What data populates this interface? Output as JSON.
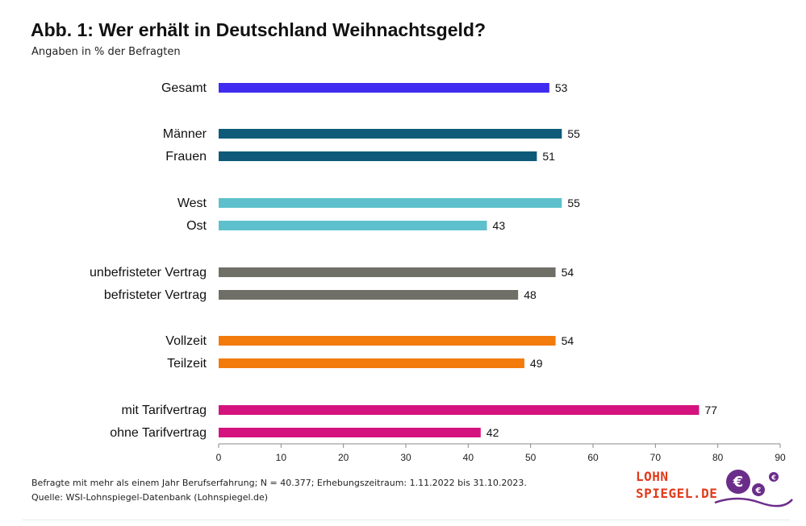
{
  "title": "Abb. 1: Wer erhält in Deutschland Weihnachtsgeld?",
  "subtitle": "Angaben in % der Befragten",
  "footnote": {
    "line1": "Befragte mit mehr als einem Jahr Berufserfahrung; N = 40.377; Erhebungszeitraum: 1.11.2022 bis 31.10.2023.",
    "line2": "Quelle: WSI-Lohnspiegel-Datenbank  (Lohnspiegel.de)"
  },
  "logo": {
    "line1": "LOHN",
    "line2": "SPIEGEL.DE",
    "euro_glyph": "€"
  },
  "chart_data": {
    "type": "bar",
    "orientation": "horizontal",
    "categories": [
      "Gesamt",
      "Männer",
      "Frauen",
      "West",
      "Ost",
      "unbefristeter Vertrag",
      "befristeter Vertrag",
      "Vollzeit",
      "Teilzeit",
      "mit Tarifvertrag",
      "ohne Tarifvertrag"
    ],
    "values": [
      53,
      55,
      51,
      55,
      43,
      54,
      48,
      54,
      49,
      77,
      42
    ],
    "groups": [
      0,
      1,
      1,
      2,
      2,
      3,
      3,
      4,
      4,
      5,
      5
    ],
    "group_colors": [
      "#3f2cf0",
      "#0e5a78",
      "#5ec0cc",
      "#6f6f68",
      "#f27b0c",
      "#d4137f"
    ],
    "value_labels": true,
    "xlim": [
      0,
      90
    ],
    "xticks": [
      0,
      10,
      20,
      30,
      40,
      50,
      60,
      70,
      80,
      90
    ],
    "grid": false,
    "legend": "none"
  }
}
